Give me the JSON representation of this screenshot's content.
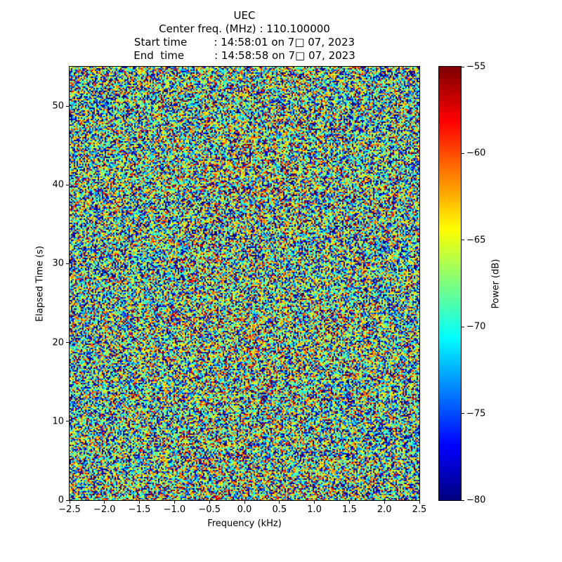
{
  "header": {
    "title": "UEC",
    "center_freq_line": "Center freq. (MHz) : 110.100000",
    "start_time_line": "Start time        : 14:58:01 on 7□ 07, 2023",
    "end_time_line": "End  time         : 14:58:58 on 7□ 07, 2023"
  },
  "chart_data": {
    "type": "heatmap",
    "title": "UEC",
    "subtitle_lines": [
      "Center freq. (MHz) : 110.100000",
      "Start time        : 14:58:01 on 7□ 07, 2023",
      "End  time         : 14:58:58 on 7□ 07, 2023"
    ],
    "xlabel": "Frequency (kHz)",
    "ylabel": "Elapsed Time (s)",
    "colorbar_label": "Power (dB)",
    "x_range": [
      -2.5,
      2.5
    ],
    "y_range": [
      0,
      55
    ],
    "color_range_db": [
      -80,
      -55
    ],
    "colormap": "jet",
    "x_ticks": [
      -2.5,
      -2.0,
      -1.5,
      -1.0,
      -0.5,
      0.0,
      0.5,
      1.0,
      1.5,
      2.0,
      2.5
    ],
    "x_tick_labels": [
      "−2.5",
      "−2.0",
      "−1.5",
      "−1.0",
      "−0.5",
      "0.0",
      "0.5",
      "1.0",
      "1.5",
      "2.0",
      "2.5"
    ],
    "y_ticks": [
      0,
      10,
      20,
      30,
      40,
      50
    ],
    "y_tick_labels": [
      "0",
      "10",
      "20",
      "30",
      "40",
      "50"
    ],
    "colorbar_ticks": [
      -55,
      -60,
      -65,
      -70,
      -75,
      -80
    ],
    "colorbar_tick_labels": [
      "−55",
      "−60",
      "−65",
      "−70",
      "−75",
      "−80"
    ],
    "content_summary": "Full-band random noise spectrogram: typical power −70 to −63 dB (cyan/green/yellow speckle), sparse deep-blue (−80 dB) and red (−55 dB) speckles, slightly warmer band around 0 kHz and faint horizontal banding",
    "noise_model": {
      "seed": 42,
      "base_db": -66.4,
      "speckle_scale": 1.55,
      "center_bump_db": 1.0,
      "row_band_db": 1.4
    }
  }
}
